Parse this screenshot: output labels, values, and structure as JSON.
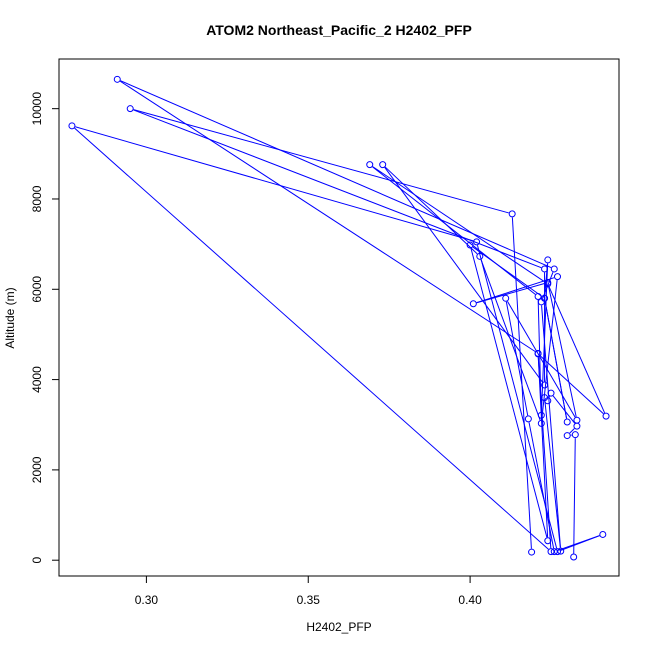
{
  "chart_data": {
    "type": "line",
    "title": "ATOM2 Northeast_Pacific_2 H2402_PFP",
    "xlabel": "H2402_PFP",
    "ylabel": "Altitude (m)",
    "xlim": [
      0.273,
      0.446
    ],
    "ylim": [
      -350,
      11100
    ],
    "x_ticks": [
      0.3,
      0.35,
      0.4
    ],
    "x_tick_labels": [
      "0.30",
      "0.35",
      "0.40"
    ],
    "y_ticks": [
      0,
      2000,
      4000,
      6000,
      8000,
      10000
    ],
    "y_tick_labels": [
      "0",
      "2000",
      "4000",
      "6000",
      "8000",
      "10000"
    ],
    "grid": false,
    "legend": false,
    "color": "#0000ff",
    "marker": "open-circle",
    "series": [
      {
        "x": [
          0.432,
          0.4325,
          0.43,
          0.433,
          0.425,
          0.424,
          0.423,
          0.428,
          0.422,
          0.426,
          0.291,
          0.421,
          0.424,
          0.4,
          0.423,
          0.43,
          0.423,
          0.424,
          0.422,
          0.421,
          0.369,
          0.424,
          0.442,
          0.421,
          0.425,
          0.277,
          0.402,
          0.427,
          0.441,
          0.426,
          0.418,
          0.411,
          0.433,
          0.424,
          0.401,
          0.427,
          0.422,
          0.403,
          0.373,
          0.423,
          0.423,
          0.295,
          0.413,
          0.419
        ],
        "y": [
          70,
          2780,
          2760,
          2970,
          3700,
          3530,
          3600,
          200,
          5720,
          6450,
          10650,
          4580,
          430,
          6980,
          5800,
          3060,
          5800,
          6650,
          3210,
          5840,
          8760,
          6120,
          3190,
          4570,
          190,
          9620,
          7050,
          190,
          570,
          190,
          3130,
          5800,
          3100,
          6150,
          5680,
          6280,
          3030,
          6730,
          8760,
          3880,
          6450,
          10000,
          7670,
          180
        ]
      }
    ]
  }
}
